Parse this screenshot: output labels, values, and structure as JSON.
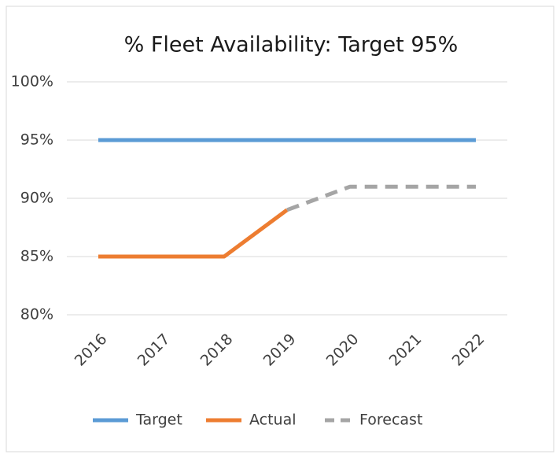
{
  "chart_data": {
    "type": "line",
    "title": "% Fleet Availability: Target 95%",
    "categories": [
      "2016",
      "2017",
      "2018",
      "2019",
      "2020",
      "2021",
      "2022"
    ],
    "series": [
      {
        "name": "Target",
        "color": "#5b9bd5",
        "values": [
          95,
          95,
          95,
          95,
          95,
          95,
          95
        ]
      },
      {
        "name": "Actual",
        "color": "#ed7d31",
        "values": [
          85,
          85,
          85,
          89,
          null,
          null,
          null
        ]
      },
      {
        "name": "Forecast",
        "color": "#a5a5a5",
        "dashed": true,
        "values": [
          null,
          null,
          null,
          89,
          91,
          91,
          91
        ]
      }
    ],
    "ylim": [
      80,
      100
    ],
    "yticks": [
      {
        "value": 80,
        "label": "80%"
      },
      {
        "value": 85,
        "label": "85%"
      },
      {
        "value": 90,
        "label": "90%"
      },
      {
        "value": 95,
        "label": "95%"
      },
      {
        "value": 100,
        "label": "100%"
      }
    ],
    "grid": true,
    "legend": "bottom"
  }
}
